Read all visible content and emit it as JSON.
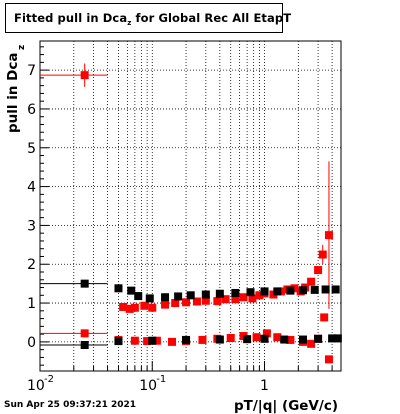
{
  "header": {
    "title_main": "Fitted pull in Dca",
    "title_sub": "z",
    "title_rest": " for Global Rec All EtapT"
  },
  "footer": {
    "timestamp": "Sun Apr 25 09:37:21 2021"
  },
  "chart_data": {
    "type": "scatter",
    "title": "Fitted pull in Dca_z for Global Rec All EtapT",
    "xlabel": "pT/|q| (GeV/c)",
    "ylabel": "pull in Dca",
    "ylabel_sub": "z",
    "x_scale": "log",
    "xlim": [
      0.01,
      4.8
    ],
    "ylim": [
      -0.75,
      7.75
    ],
    "grid": true,
    "x_tick_labels": [
      {
        "value": 0.01,
        "base": "10",
        "exp": "-2"
      },
      {
        "value": 0.1,
        "base": "10",
        "exp": "-1"
      },
      {
        "value": 1,
        "base": "1",
        "exp": ""
      }
    ],
    "y_ticks": [
      0,
      1,
      2,
      3,
      4,
      5,
      6,
      7
    ],
    "series": [
      {
        "color": "#ff0000",
        "points": [
          {
            "x": 0.025,
            "y": 6.87,
            "xerr": [
              0.01,
              0.04
            ],
            "yerr": 0.3
          },
          {
            "x": 0.055,
            "y": 0.9
          },
          {
            "x": 0.063,
            "y": 0.85
          },
          {
            "x": 0.07,
            "y": 0.88
          },
          {
            "x": 0.085,
            "y": 0.93
          },
          {
            "x": 0.1,
            "y": 0.88
          },
          {
            "x": 0.13,
            "y": 0.96
          },
          {
            "x": 0.16,
            "y": 1.0
          },
          {
            "x": 0.2,
            "y": 1.02
          },
          {
            "x": 0.25,
            "y": 1.04
          },
          {
            "x": 0.3,
            "y": 1.06
          },
          {
            "x": 0.38,
            "y": 1.05
          },
          {
            "x": 0.45,
            "y": 1.1
          },
          {
            "x": 0.55,
            "y": 1.1
          },
          {
            "x": 0.65,
            "y": 1.15
          },
          {
            "x": 0.78,
            "y": 1.12
          },
          {
            "x": 0.9,
            "y": 1.2
          },
          {
            "x": 1.0,
            "y": 1.25
          },
          {
            "x": 1.2,
            "y": 1.22
          },
          {
            "x": 1.4,
            "y": 1.3
          },
          {
            "x": 1.6,
            "y": 1.35
          },
          {
            "x": 1.85,
            "y": 1.38
          },
          {
            "x": 2.1,
            "y": 1.3
          },
          {
            "x": 2.3,
            "y": 1.4
          },
          {
            "x": 2.6,
            "y": 1.55
          },
          {
            "x": 3.0,
            "y": 1.85
          },
          {
            "x": 3.3,
            "y": 2.25,
            "yerr": 0.25
          },
          {
            "x": 3.75,
            "y": 2.75,
            "yerr": 1.9
          }
        ]
      },
      {
        "color": "#000000",
        "points": [
          {
            "x": 0.025,
            "y": 1.5,
            "xerr": [
              0.01,
              0.04
            ]
          },
          {
            "x": 0.05,
            "y": 1.38
          },
          {
            "x": 0.065,
            "y": 1.32
          },
          {
            "x": 0.075,
            "y": 1.18
          },
          {
            "x": 0.095,
            "y": 1.12
          },
          {
            "x": 0.13,
            "y": 1.15
          },
          {
            "x": 0.17,
            "y": 1.17
          },
          {
            "x": 0.22,
            "y": 1.2
          },
          {
            "x": 0.3,
            "y": 1.22
          },
          {
            "x": 0.4,
            "y": 1.24
          },
          {
            "x": 0.55,
            "y": 1.26
          },
          {
            "x": 0.75,
            "y": 1.28
          },
          {
            "x": 1.0,
            "y": 1.3
          },
          {
            "x": 1.3,
            "y": 1.3
          },
          {
            "x": 1.7,
            "y": 1.32
          },
          {
            "x": 2.2,
            "y": 1.33
          },
          {
            "x": 2.8,
            "y": 1.34
          },
          {
            "x": 3.5,
            "y": 1.35
          },
          {
            "x": 4.3,
            "y": 1.35
          }
        ]
      },
      {
        "color": "#ff0000",
        "points": [
          {
            "x": 0.025,
            "y": 0.22,
            "xerr": [
              0.01,
              0.04
            ],
            "yerr": 0.1
          },
          {
            "x": 0.05,
            "y": 0.05
          },
          {
            "x": 0.07,
            "y": 0.03
          },
          {
            "x": 0.09,
            "y": 0.02
          },
          {
            "x": 0.11,
            "y": 0.03
          },
          {
            "x": 0.15,
            "y": 0.0
          },
          {
            "x": 0.2,
            "y": 0.02
          },
          {
            "x": 0.28,
            "y": 0.05
          },
          {
            "x": 0.38,
            "y": 0.08
          },
          {
            "x": 0.5,
            "y": 0.1
          },
          {
            "x": 0.65,
            "y": 0.15
          },
          {
            "x": 0.85,
            "y": 0.12
          },
          {
            "x": 1.05,
            "y": 0.22
          },
          {
            "x": 1.3,
            "y": 0.12
          },
          {
            "x": 1.7,
            "y": 0.05
          },
          {
            "x": 2.2,
            "y": 0.0
          },
          {
            "x": 2.6,
            "y": -0.05
          },
          {
            "x": 3.0,
            "y": 0.08
          },
          {
            "x": 3.4,
            "y": 0.63
          },
          {
            "x": 3.75,
            "y": -0.45
          }
        ]
      },
      {
        "color": "#000000",
        "points": [
          {
            "x": 0.025,
            "y": -0.08,
            "xerr": [
              0.01,
              0.04
            ]
          },
          {
            "x": 0.05,
            "y": 0.02
          },
          {
            "x": 0.1,
            "y": 0.03
          },
          {
            "x": 0.2,
            "y": 0.05
          },
          {
            "x": 0.4,
            "y": 0.06
          },
          {
            "x": 0.7,
            "y": 0.07
          },
          {
            "x": 1.0,
            "y": 0.08
          },
          {
            "x": 1.5,
            "y": 0.06
          },
          {
            "x": 2.2,
            "y": 0.06
          },
          {
            "x": 3.0,
            "y": 0.08
          },
          {
            "x": 4.0,
            "y": 0.09
          },
          {
            "x": 4.5,
            "y": 0.09
          }
        ]
      }
    ]
  }
}
